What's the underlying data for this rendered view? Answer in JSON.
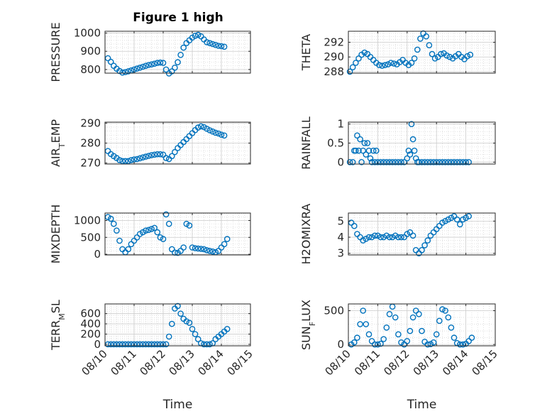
{
  "chart_data": [
    {
      "id": "pressure",
      "type": "scatter",
      "title": "Figure 1 high",
      "ylabel_parts": [
        "PRESSURE"
      ],
      "xlabel": "",
      "ylim": [
        780,
        1010
      ],
      "yticks": [
        800,
        900,
        1000
      ],
      "ytick_labels": [
        "800",
        "900",
        "1000"
      ],
      "xlim": [
        0,
        5
      ],
      "xticks": [
        0,
        1,
        2,
        3,
        4,
        5
      ],
      "xtick_labels": [],
      "grid": true,
      "x": [
        0.1,
        0.2,
        0.3,
        0.4,
        0.5,
        0.6,
        0.7,
        0.8,
        0.9,
        1.0,
        1.1,
        1.2,
        1.3,
        1.4,
        1.5,
        1.6,
        1.7,
        1.8,
        1.9,
        2.0,
        2.1,
        2.2,
        2.3,
        2.4,
        2.5,
        2.6,
        2.7,
        2.8,
        2.9,
        3.0,
        3.1,
        3.2,
        3.3,
        3.4,
        3.5,
        3.6,
        3.7,
        3.8,
        3.9,
        4.0,
        4.1
      ],
      "y": [
        862,
        842,
        820,
        804,
        792,
        783,
        786,
        790,
        795,
        800,
        805,
        810,
        815,
        820,
        825,
        828,
        832,
        836,
        838,
        836,
        800,
        778,
        790,
        810,
        840,
        880,
        920,
        945,
        960,
        975,
        985,
        990,
        982,
        965,
        950,
        945,
        940,
        935,
        930,
        928,
        925
      ]
    },
    {
      "id": "theta",
      "type": "scatter",
      "title": "",
      "ylabel_parts": [
        "THETA"
      ],
      "xlabel": "",
      "ylim": [
        287.8,
        293.5
      ],
      "yticks": [
        288,
        290,
        292
      ],
      "ytick_labels": [
        "288",
        "290",
        "292"
      ],
      "xlim": [
        0,
        5
      ],
      "xticks": [
        0,
        1,
        2,
        3,
        4,
        5
      ],
      "xtick_labels": [],
      "grid": true,
      "x": [
        0.05,
        0.15,
        0.25,
        0.35,
        0.45,
        0.55,
        0.65,
        0.75,
        0.85,
        0.95,
        1.05,
        1.15,
        1.25,
        1.35,
        1.45,
        1.55,
        1.65,
        1.75,
        1.85,
        1.95,
        2.05,
        2.15,
        2.25,
        2.35,
        2.45,
        2.55,
        2.65,
        2.75,
        2.85,
        2.95,
        3.05,
        3.15,
        3.25,
        3.35,
        3.45,
        3.55,
        3.65,
        3.75,
        3.85,
        3.95,
        4.05,
        4.15
      ],
      "y": [
        288.0,
        288.6,
        289.2,
        289.8,
        290.3,
        290.6,
        290.4,
        290.0,
        289.6,
        289.2,
        288.9,
        288.8,
        288.9,
        289.0,
        289.2,
        289.1,
        289.0,
        289.3,
        289.6,
        289.2,
        288.9,
        289.2,
        289.8,
        291.0,
        292.5,
        293.2,
        292.8,
        291.6,
        290.4,
        289.8,
        290.0,
        290.4,
        290.5,
        290.2,
        290.0,
        289.8,
        290.1,
        290.4,
        290.0,
        289.7,
        290.1,
        290.3
      ]
    },
    {
      "id": "airtemp",
      "type": "scatter",
      "title": "",
      "ylabel_parts": [
        "AIR",
        "T",
        "EMP"
      ],
      "xlabel": "",
      "ylim": [
        269.5,
        290.5
      ],
      "yticks": [
        270,
        280,
        290
      ],
      "ytick_labels": [
        "270",
        "280",
        "290"
      ],
      "xlim": [
        0,
        5
      ],
      "xticks": [
        0,
        1,
        2,
        3,
        4,
        5
      ],
      "xtick_labels": [],
      "grid": true,
      "x": [
        0.1,
        0.2,
        0.3,
        0.4,
        0.5,
        0.6,
        0.7,
        0.8,
        0.9,
        1.0,
        1.1,
        1.2,
        1.3,
        1.4,
        1.5,
        1.6,
        1.7,
        1.8,
        1.9,
        2.0,
        2.1,
        2.2,
        2.3,
        2.4,
        2.5,
        2.6,
        2.7,
        2.8,
        2.9,
        3.0,
        3.1,
        3.2,
        3.3,
        3.4,
        3.5,
        3.6,
        3.7,
        3.8,
        3.9,
        4.0,
        4.1
      ],
      "y": [
        276,
        274.5,
        273.5,
        272.5,
        271.5,
        271,
        271,
        271,
        271.5,
        271.8,
        272,
        272.4,
        272.8,
        273.2,
        273.6,
        274,
        274.2,
        274.4,
        274.4,
        274.2,
        272.5,
        272,
        273.5,
        275.5,
        277.5,
        279,
        280.5,
        282,
        283.5,
        285,
        286.5,
        287.8,
        288.4,
        288,
        287.2,
        286.4,
        285.8,
        285.2,
        284.8,
        284.2,
        283.8
      ]
    },
    {
      "id": "rainfall",
      "type": "scatter",
      "title": "",
      "ylabel_parts": [
        "RAINFALL"
      ],
      "xlabel": "",
      "ylim": [
        -0.05,
        1.05
      ],
      "yticks": [
        0,
        0.5,
        1
      ],
      "ytick_labels": [
        "0",
        "0.5",
        "1"
      ],
      "xlim": [
        0,
        5
      ],
      "xticks": [
        0,
        1,
        2,
        3,
        4,
        5
      ],
      "xtick_labels": [],
      "grid": true,
      "x": [
        0.05,
        0.15,
        0.2,
        0.25,
        0.3,
        0.35,
        0.4,
        0.45,
        0.5,
        0.55,
        0.6,
        0.65,
        0.7,
        0.75,
        0.8,
        0.85,
        0.9,
        0.95,
        1.0,
        1.1,
        1.2,
        1.3,
        1.4,
        1.5,
        1.6,
        1.7,
        1.8,
        1.9,
        2.0,
        2.05,
        2.1,
        2.15,
        2.2,
        2.25,
        2.3,
        2.35,
        2.4,
        2.5,
        2.6,
        2.7,
        2.8,
        2.9,
        3.0,
        3.1,
        3.2,
        3.3,
        3.4,
        3.5,
        3.6,
        3.7,
        3.8,
        3.9,
        4.0,
        4.1
      ],
      "y": [
        0,
        0,
        0.3,
        0.3,
        0.7,
        0.3,
        0.6,
        0,
        0.3,
        0.5,
        0.2,
        0.5,
        0.3,
        0.1,
        0,
        0.3,
        0,
        0.3,
        0,
        0,
        0,
        0,
        0,
        0,
        0,
        0,
        0,
        0,
        0.1,
        0.3,
        0.2,
        1.0,
        0.6,
        0.3,
        0.1,
        0,
        0,
        0,
        0,
        0,
        0,
        0,
        0,
        0,
        0,
        0,
        0,
        0,
        0,
        0,
        0,
        0,
        0,
        0
      ]
    },
    {
      "id": "mixdepth",
      "type": "scatter",
      "title": "",
      "ylabel_parts": [
        "MIXDEPTH"
      ],
      "xlabel": "",
      "ylim": [
        -20,
        1220
      ],
      "yticks": [
        0,
        500,
        1000
      ],
      "ytick_labels": [
        "0",
        "500",
        "1000"
      ],
      "xlim": [
        0,
        5
      ],
      "xticks": [
        0,
        1,
        2,
        3,
        4,
        5
      ],
      "xtick_labels": [],
      "grid": true,
      "x": [
        0.1,
        0.2,
        0.3,
        0.4,
        0.5,
        0.6,
        0.7,
        0.8,
        0.9,
        1.0,
        1.1,
        1.2,
        1.3,
        1.4,
        1.5,
        1.6,
        1.7,
        1.8,
        1.9,
        2.0,
        2.1,
        2.2,
        2.3,
        2.4,
        2.5,
        2.6,
        2.7,
        2.8,
        2.9,
        3.0,
        3.1,
        3.2,
        3.3,
        3.4,
        3.5,
        3.6,
        3.7,
        3.8,
        3.9,
        4.0,
        4.1,
        4.2
      ],
      "y": [
        1100,
        1050,
        900,
        700,
        400,
        150,
        60,
        150,
        300,
        400,
        500,
        600,
        650,
        700,
        720,
        750,
        780,
        650,
        500,
        450,
        1180,
        900,
        150,
        50,
        40,
        100,
        200,
        900,
        850,
        200,
        180,
        170,
        160,
        150,
        120,
        100,
        80,
        60,
        100,
        200,
        300,
        450
      ]
    },
    {
      "id": "h2omixra",
      "type": "scatter",
      "title": "",
      "ylabel_parts": [
        "H2OMIXRA"
      ],
      "xlabel": "",
      "ylim": [
        2.9,
        5.5
      ],
      "yticks": [
        3,
        4,
        5
      ],
      "ytick_labels": [
        "3",
        "4",
        "5"
      ],
      "xlim": [
        0,
        5
      ],
      "xticks": [
        0,
        1,
        2,
        3,
        4,
        5
      ],
      "xtick_labels": [],
      "grid": true,
      "x": [
        0.1,
        0.2,
        0.3,
        0.4,
        0.5,
        0.6,
        0.7,
        0.8,
        0.9,
        1.0,
        1.1,
        1.2,
        1.3,
        1.4,
        1.5,
        1.6,
        1.7,
        1.8,
        1.9,
        2.0,
        2.1,
        2.2,
        2.3,
        2.4,
        2.5,
        2.6,
        2.7,
        2.8,
        2.9,
        3.0,
        3.1,
        3.2,
        3.3,
        3.4,
        3.5,
        3.6,
        3.7,
        3.8,
        3.9,
        4.0,
        4.1
      ],
      "y": [
        4.9,
        4.7,
        4.2,
        4.0,
        3.8,
        3.9,
        4.0,
        4.0,
        4.1,
        4.1,
        4.0,
        4.0,
        4.1,
        4.0,
        4.0,
        4.1,
        4.0,
        4.0,
        4.0,
        4.2,
        4.3,
        4.1,
        3.2,
        3.0,
        3.2,
        3.5,
        3.8,
        4.1,
        4.3,
        4.5,
        4.7,
        4.9,
        5.0,
        5.1,
        5.2,
        5.3,
        5.1,
        4.8,
        5.1,
        5.2,
        5.3
      ]
    },
    {
      "id": "terrmsl",
      "type": "scatter",
      "title": "",
      "ylabel_parts": [
        "TERR",
        "M",
        "SL"
      ],
      "xlabel": "Time",
      "ylim": [
        -30,
        790
      ],
      "yticks": [
        0,
        200,
        400,
        600
      ],
      "ytick_labels": [
        "0",
        "200",
        "400",
        "600"
      ],
      "xlim": [
        0,
        5
      ],
      "xticks": [
        0,
        1,
        2,
        3,
        4,
        5
      ],
      "xtick_labels": [
        "08/10",
        "08/11",
        "08/12",
        "08/13",
        "08/14",
        "08/15"
      ],
      "grid": true,
      "x": [
        0.1,
        0.2,
        0.3,
        0.4,
        0.5,
        0.6,
        0.7,
        0.8,
        0.9,
        1.0,
        1.1,
        1.2,
        1.3,
        1.4,
        1.5,
        1.6,
        1.7,
        1.8,
        1.9,
        2.0,
        2.1,
        2.2,
        2.3,
        2.4,
        2.5,
        2.6,
        2.7,
        2.8,
        2.9,
        3.0,
        3.1,
        3.2,
        3.3,
        3.4,
        3.5,
        3.6,
        3.7,
        3.8,
        3.9,
        4.0,
        4.1,
        4.2
      ],
      "y": [
        0,
        0,
        0,
        0,
        0,
        0,
        0,
        0,
        0,
        0,
        0,
        0,
        0,
        0,
        0,
        0,
        0,
        0,
        0,
        0,
        0,
        150,
        400,
        700,
        750,
        600,
        500,
        450,
        420,
        300,
        200,
        100,
        20,
        0,
        0,
        0,
        20,
        100,
        150,
        200,
        250,
        300
      ]
    },
    {
      "id": "sunflux",
      "type": "scatter",
      "title": "",
      "ylabel_parts": [
        "SUN",
        "F",
        "LUX"
      ],
      "xlabel": "Time",
      "ylim": [
        -20,
        600
      ],
      "yticks": [
        0,
        500
      ],
      "ytick_labels": [
        "0",
        "500"
      ],
      "xlim": [
        0,
        5
      ],
      "xticks": [
        0,
        1,
        2,
        3,
        4,
        5
      ],
      "xtick_labels": [
        "08/10",
        "08/11",
        "08/12",
        "08/13",
        "08/14",
        "08/15"
      ],
      "grid": true,
      "x": [
        0.1,
        0.2,
        0.3,
        0.4,
        0.5,
        0.6,
        0.7,
        0.8,
        0.9,
        1.0,
        1.1,
        1.2,
        1.3,
        1.4,
        1.5,
        1.6,
        1.7,
        1.8,
        1.9,
        2.0,
        2.1,
        2.2,
        2.3,
        2.4,
        2.5,
        2.6,
        2.7,
        2.8,
        2.9,
        3.0,
        3.1,
        3.2,
        3.3,
        3.4,
        3.5,
        3.6,
        3.7,
        3.8,
        3.9,
        4.0,
        4.1,
        4.2
      ],
      "y": [
        0,
        30,
        100,
        300,
        500,
        300,
        150,
        50,
        0,
        0,
        10,
        80,
        250,
        450,
        560,
        400,
        150,
        30,
        0,
        50,
        200,
        400,
        500,
        450,
        200,
        40,
        0,
        5,
        30,
        150,
        350,
        520,
        500,
        400,
        250,
        100,
        20,
        0,
        0,
        10,
        50,
        100
      ]
    }
  ]
}
